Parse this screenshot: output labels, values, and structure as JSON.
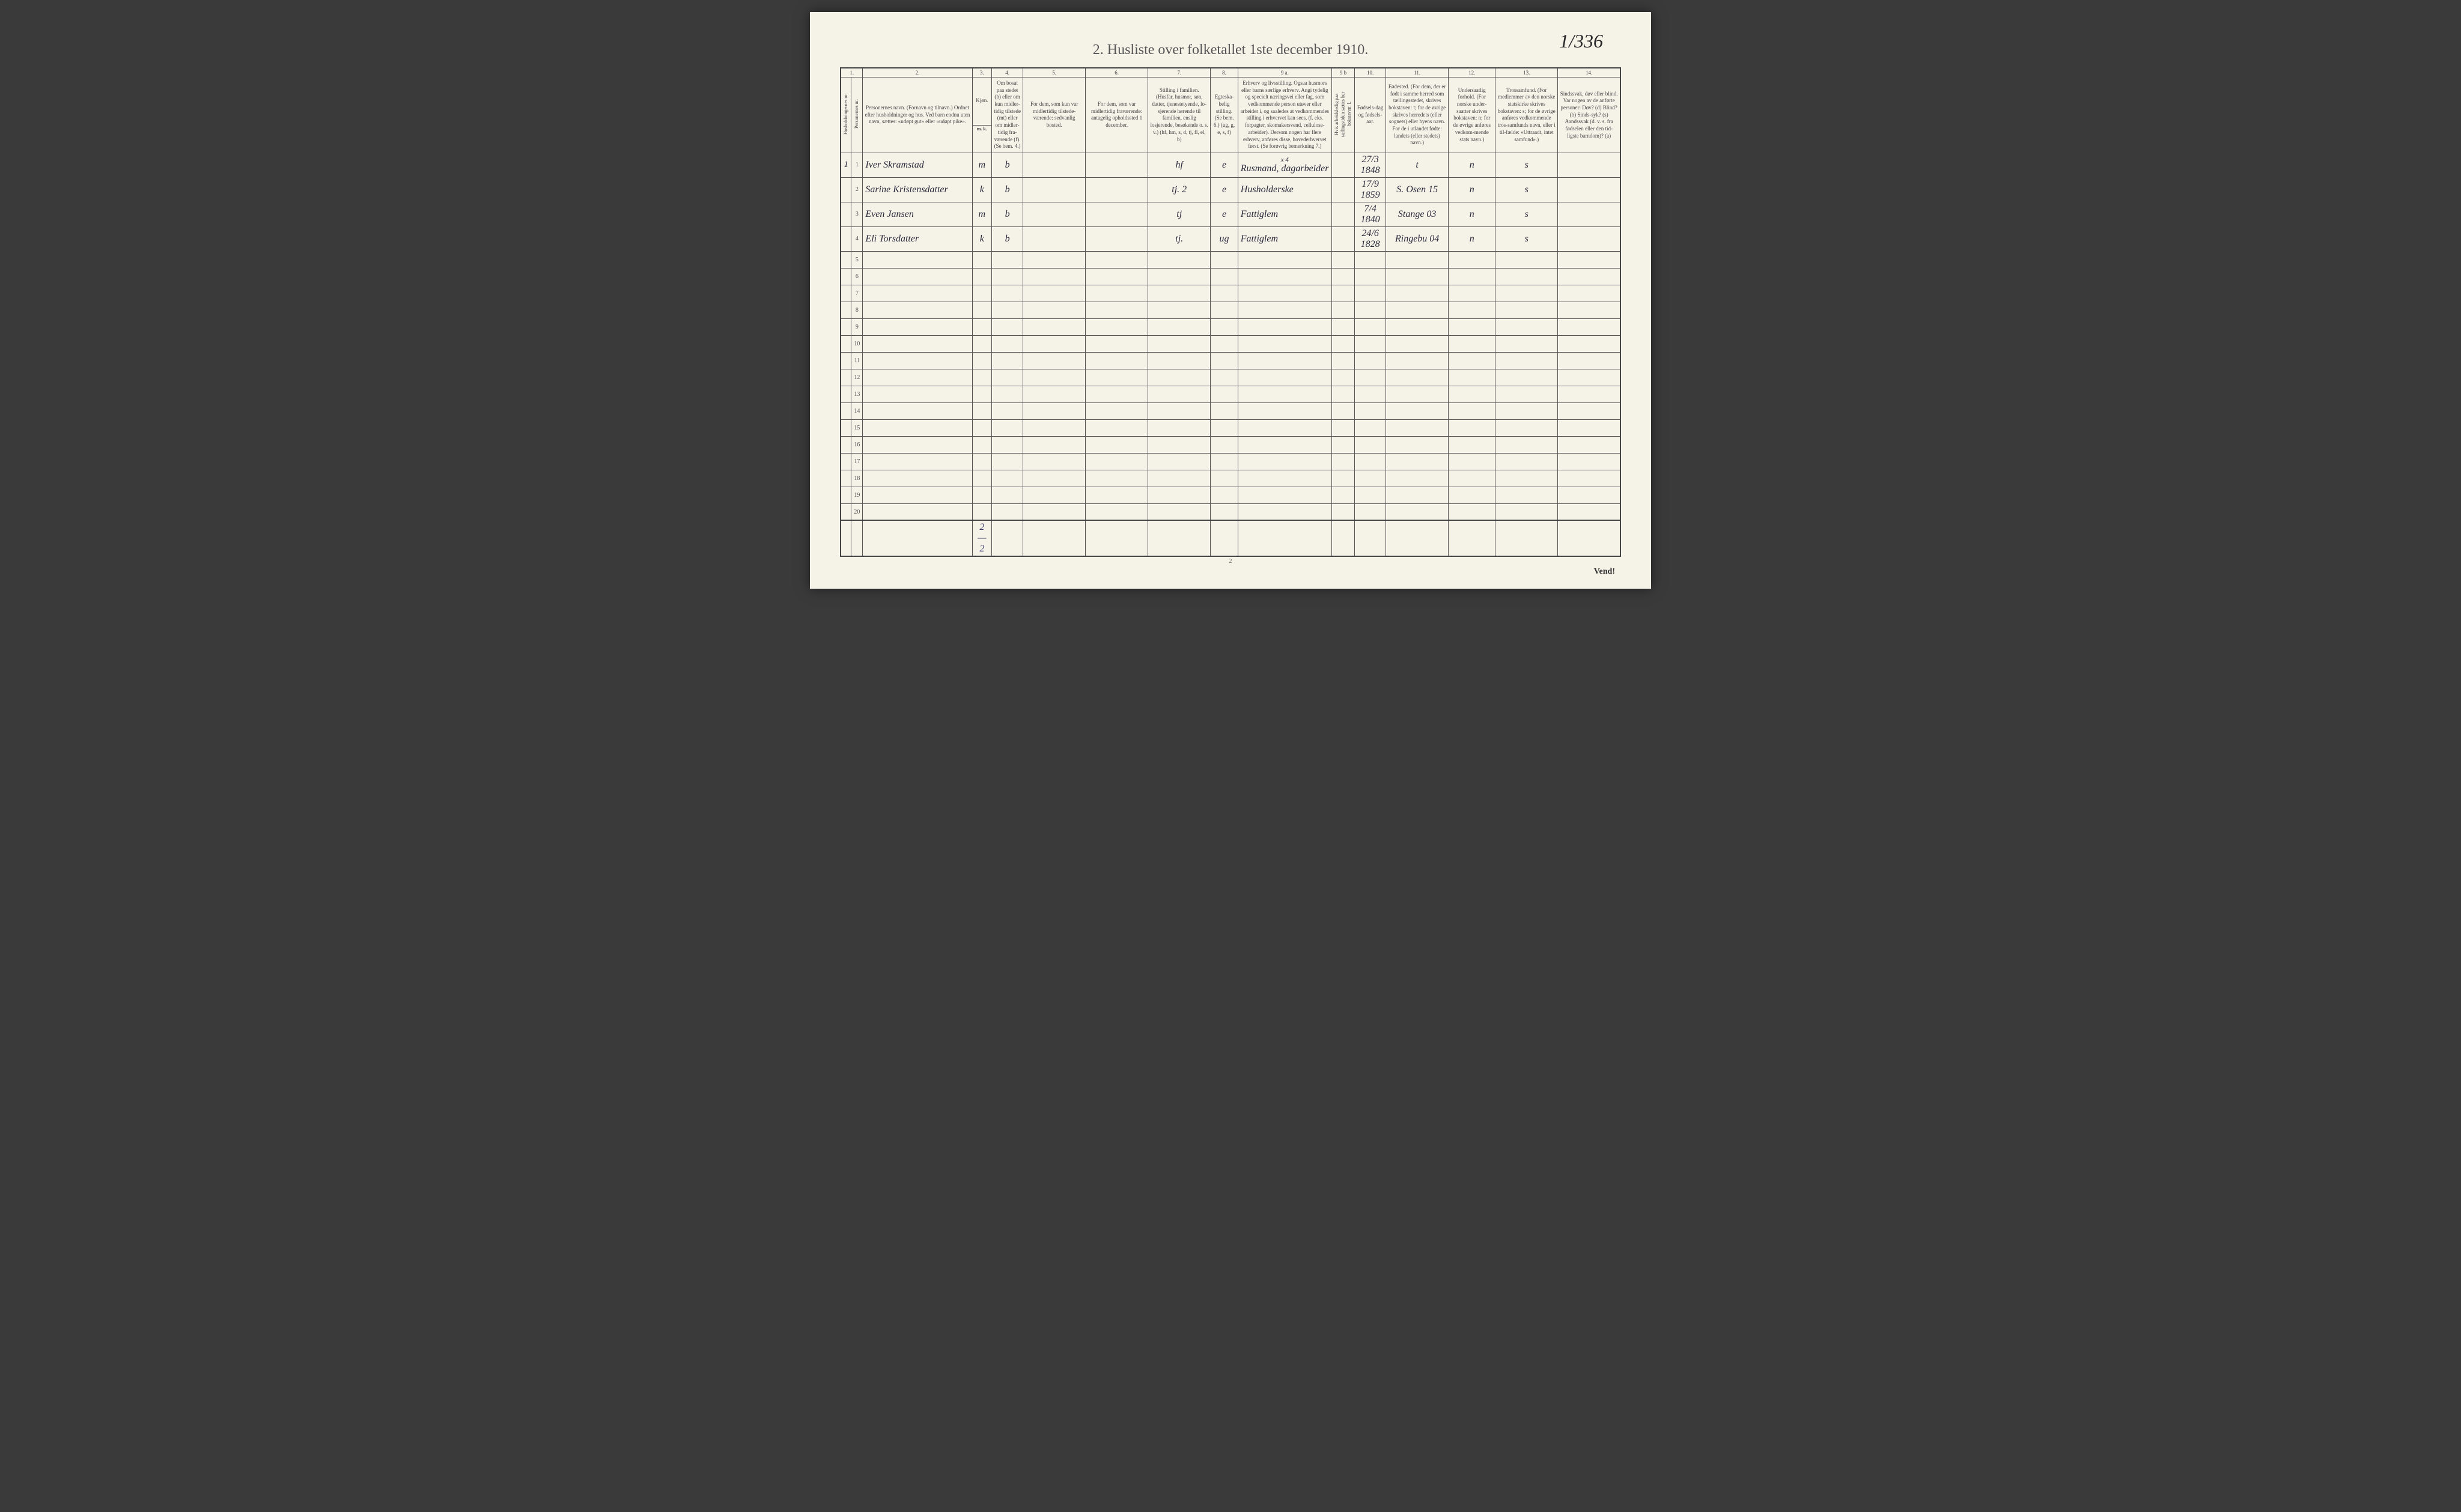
{
  "page_ref": "1/336",
  "title": "2.  Husliste over folketallet 1ste december 1910.",
  "page_number": "2",
  "vend": "Vend!",
  "col_nums": [
    "1.",
    "2.",
    "3.",
    "4.",
    "5.",
    "6.",
    "7.",
    "8.",
    "9 a.",
    "9 b",
    "10.",
    "11.",
    "12.",
    "13.",
    "14."
  ],
  "headers": {
    "h1a": "Husholdningernes nr.",
    "h1b": "Personernes nr.",
    "h2": "Personernes navn.\n(Fornavn og tilnavn.)\nOrdnet efter husholdninger og hus.\nVed barn endnu uten navn, sættes: «udøpt gut» eller «udøpt pike».",
    "h3a": "Kjøn.",
    "h3m": "Mand.",
    "h3k": "Kvinde.",
    "h3mk": "m. k.",
    "h4": "Om bosat paa stedet (b) eller om kun midler-tidig tilstede (mt) eller om midler-tidig fra-værende (f). (Se bem. 4.)",
    "h5": "For dem, som kun var midlertidig tilstede-værende:\nsedvanlig bosted.",
    "h6": "For dem, som var midlertidig fraværende:\nantagelig opholdssted 1 december.",
    "h7": "Stilling i familien.\n(Husfar, husmor, søn, datter, tjenestetyende, lo-sjerende hørende til familien, enslig losjerende, besøkende o. s. v.)\n(hf, hm, s, d, tj, fl, el, b)",
    "h8": "Egteska-belig stilling.\n(Se bem. 6.)\n(ug, g, e, s, f)",
    "h9a": "Erhverv og livsstilling.\nOgsaa husmors eller barns særlige erhverv. Angi tydelig og specielt næringsvei eller fag, som vedkommende person utøver eller arbeider i, og saaledes at vedkommendes stilling i erhvervet kan sees, (f. eks. forpagter, skomakersvend, cellulose-arbeider). Dersom nogen har flere erhverv, anføres disse, hovederhvervet først.\n(Se forøvrig bemerkning 7.)",
    "h9b": "Hvis arbeidsledig paa tællingstiden sættes her bokstaven: l.",
    "h10": "Fødsels-dag og fødsels-aar.",
    "h11": "Fødested.\n(For dem, der er født i samme herred som tællingsstedet, skrives bokstaven: t; for de øvrige skrives herredets (eller sognets) eller byens navn. For de i utlandet fødte: landets (eller stedets) navn.)",
    "h12": "Undersaatlig forhold.\n(For norske under-saatter skrives bokstaven: n; for de øvrige anføres vedkom-mende stats navn.)",
    "h13": "Trossamfund.\n(For medlemmer av den norske statskirke skrives bokstaven: s; for de øvrige anføres vedkommende tros-samfunds navn, eller i til-fælde: «Uttraadt, intet samfund».)",
    "h14": "Sindssvak, døv eller blind.\nVar nogen av de anførte personer:\nDøv? (d)\nBlind? (b)\nSinds-syk? (s)\nAandssvak (d. v. s. fra fødselen eller den tid-ligste barndom)? (a)"
  },
  "rows": [
    {
      "hh": "1",
      "n": "1",
      "name": "Iver Skramstad",
      "sex": "m",
      "res": "b",
      "c5": "",
      "c6": "",
      "fam": "hf",
      "mar": "e",
      "occ_note": "x 4",
      "occ": "Rusmand, dagarbeider",
      "c9b": "",
      "birth": "27/3 1848",
      "place": "t",
      "nat": "n",
      "rel": "s",
      "c14": ""
    },
    {
      "hh": "",
      "n": "2",
      "name": "Sarine Kristensdatter",
      "sex": "k",
      "res": "b",
      "c5": "",
      "c6": "",
      "fam": "tj.  2",
      "mar": "e",
      "occ_note": "",
      "occ": "Husholderske",
      "c9b": "",
      "birth": "17/9 1859",
      "place": "S. Osen  15",
      "nat": "n",
      "rel": "s",
      "c14": ""
    },
    {
      "hh": "",
      "n": "3",
      "name": "Even Jansen",
      "sex": "m",
      "res": "b",
      "c5": "",
      "c6": "",
      "fam": "tj",
      "mar": "e",
      "occ_note": "",
      "occ": "Fattiglem",
      "c9b": "",
      "birth": "7/4 1840",
      "place": "Stange  03",
      "nat": "n",
      "rel": "s",
      "c14": ""
    },
    {
      "hh": "",
      "n": "4",
      "name": "Eli Torsdatter",
      "sex": "k",
      "res": "b",
      "c5": "",
      "c6": "",
      "fam": "tj.",
      "mar": "ug",
      "occ_note": "",
      "occ": "Fattiglem",
      "c9b": "",
      "birth": "24/6 1828",
      "place": "Ringebu  04",
      "nat": "n",
      "rel": "s",
      "c14": ""
    }
  ],
  "empty_row_nums": [
    "5",
    "6",
    "7",
    "8",
    "9",
    "10",
    "11",
    "12",
    "13",
    "14",
    "15",
    "16",
    "17",
    "18",
    "19",
    "20"
  ],
  "totals": "2 — 2"
}
